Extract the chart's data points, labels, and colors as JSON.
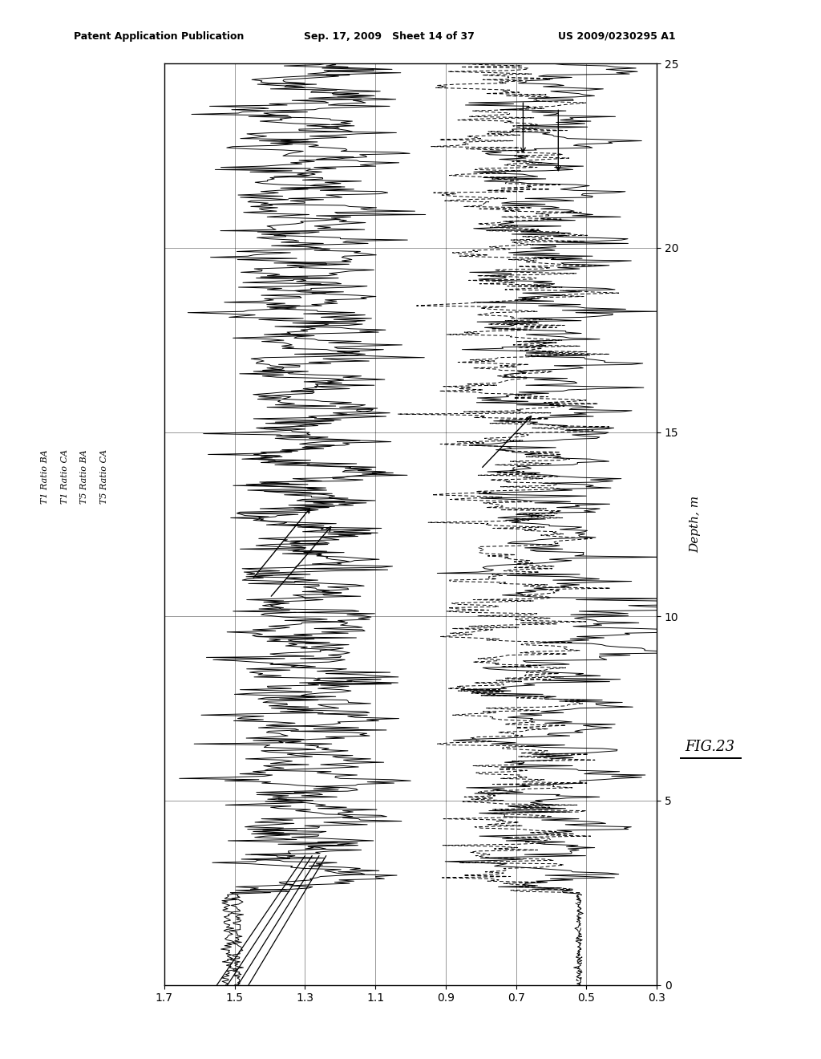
{
  "title_line1": "Patent Application Publication",
  "title_line2": "Sep. 17, 2009   Sheet 14 of 37",
  "title_line3": "US 2009/0230295 A1",
  "fig_label": "FIG.23",
  "depth_label": "Depth, m",
  "x_range": [
    1.7,
    0.3
  ],
  "y_range": [
    0,
    25
  ],
  "x_ticks": [
    1.7,
    1.5,
    1.3,
    1.1,
    0.9,
    0.7,
    0.5,
    0.3
  ],
  "y_ticks": [
    0,
    5,
    10,
    15,
    20,
    25
  ],
  "legend_labels": [
    "T1 Ratio BA",
    "T1 Ratio CA",
    "T5 Ratio BA",
    "T5 Ratio CA"
  ],
  "background_color": "#ffffff",
  "seed": 42
}
